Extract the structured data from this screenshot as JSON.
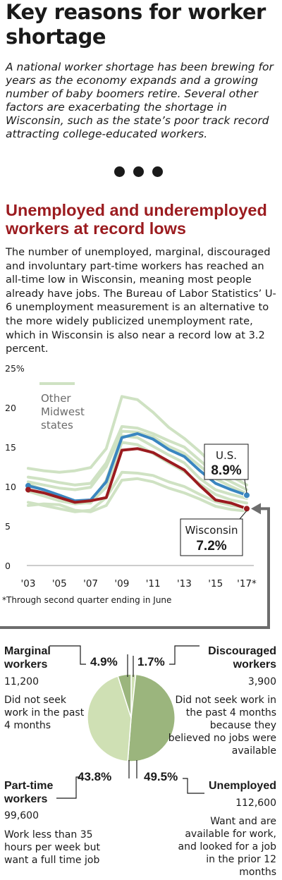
{
  "header": {
    "title": "Key reasons for worker shortage",
    "intro": "A national worker shortage has been brewing for years as the economy expands and a growing number of baby boomers retire. Several other factors are exacerbating the shortage in Wisconsin, such as the state’s poor track record attracting college-educated workers."
  },
  "section": {
    "title": "Unemployed and underemployed workers at record lows",
    "description": "The number of unemployed, marginal, discouraged and involuntary part-time workers has reached an all-time low in Wisconsin, meaning most people already have jobs. The Bureau of Labor Statistics’ U-6 unemployment measurement is an alternative to the more widely publicized unemployment rate, which in Wisconsin is also near a record low at 3.2 percent."
  },
  "footnote": "*Through second quarter ending in June",
  "colors": {
    "us": "#3a86c0",
    "wisconsin": "#9b1b1f",
    "midwest": "#cfe2c3",
    "accent": "#9b1b1f",
    "pie_dark": "#9bb57d",
    "pie_light": "#cfe0b4"
  },
  "chart_data": [
    {
      "type": "line",
      "title": "",
      "ylim": [
        0,
        25
      ],
      "yticks": [
        "0",
        "5",
        "10",
        "15",
        "20",
        "25%"
      ],
      "xticks": [
        "'03",
        "'05",
        "'07",
        "'09",
        "'11",
        "'13",
        "'15",
        "'17*"
      ],
      "x": [
        2003,
        2004,
        2005,
        2006,
        2007,
        2008,
        2009,
        2010,
        2011,
        2012,
        2013,
        2014,
        2015,
        2016,
        2017
      ],
      "legend": {
        "label_lines": [
          "Other",
          "Midwest",
          "states"
        ]
      },
      "series": [
        {
          "name": "U.S.",
          "end_value": "8.9%",
          "values": [
            10.1,
            9.6,
            8.9,
            8.2,
            8.3,
            10.6,
            16.2,
            16.7,
            16.0,
            14.7,
            13.8,
            12.0,
            10.4,
            9.6,
            8.9
          ]
        },
        {
          "name": "Wisconsin",
          "end_value": "7.2%",
          "values": [
            9.6,
            9.2,
            8.6,
            8.0,
            8.2,
            8.6,
            14.6,
            14.8,
            14.3,
            13.2,
            12.1,
            10.1,
            8.3,
            7.9,
            7.2
          ]
        },
        {
          "name": "",
          "values": [
            12.3,
            12.0,
            11.8,
            12.0,
            12.4,
            14.8,
            21.4,
            21.0,
            19.4,
            17.5,
            16.1,
            14.4,
            12.5,
            11.3,
            10.2
          ]
        },
        {
          "name": "",
          "values": [
            11.2,
            10.9,
            10.5,
            10.2,
            10.4,
            13.0,
            17.6,
            17.4,
            16.7,
            15.8,
            15.0,
            13.3,
            11.6,
            10.6,
            9.6
          ]
        },
        {
          "name": "",
          "values": [
            10.6,
            10.2,
            9.8,
            9.6,
            9.9,
            12.5,
            17.0,
            16.9,
            16.3,
            15.1,
            14.2,
            12.6,
            11.0,
            10.0,
            9.1
          ]
        },
        {
          "name": "",
          "values": [
            10.3,
            9.6,
            8.7,
            8.0,
            7.9,
            10.8,
            16.4,
            16.2,
            15.1,
            14.0,
            13.0,
            11.0,
            9.6,
            9.0,
            8.5
          ]
        },
        {
          "name": "",
          "values": [
            9.4,
            8.8,
            8.2,
            7.8,
            8.0,
            9.9,
            15.6,
            15.3,
            14.2,
            13.0,
            11.9,
            10.3,
            9.0,
            8.3,
            7.9
          ]
        },
        {
          "name": "",
          "values": [
            8.0,
            7.6,
            7.2,
            6.8,
            7.0,
            8.6,
            11.8,
            11.7,
            11.4,
            10.6,
            10.0,
            9.0,
            8.1,
            7.6,
            7.3
          ]
        },
        {
          "name": "",
          "values": [
            7.6,
            7.8,
            7.7,
            7.0,
            6.8,
            7.6,
            10.8,
            11.0,
            10.6,
            9.8,
            9.2,
            8.4,
            7.5,
            7.1,
            6.9
          ]
        }
      ]
    },
    {
      "type": "pie",
      "title": "",
      "slices": [
        {
          "name": "Unemployed",
          "pct_label": "49.5%",
          "value": 49.5,
          "count": "112,600",
          "description": "Want and are available for work, and looked for a job in the prior 12 months",
          "color": "#9bb57d"
        },
        {
          "name": "Part-time workers",
          "pct_label": "43.8%",
          "value": 43.8,
          "count": "99,600",
          "description": "Work less than 35 hours per week but want a full time job",
          "color": "#cfe0b4"
        },
        {
          "name": "Marginal workers",
          "pct_label": "4.9%",
          "value": 4.9,
          "count": "11,200",
          "description": "Did not seek work in the past 4 months",
          "color": "#9bb57d"
        },
        {
          "name": "Discouraged workers",
          "pct_label": "1.7%",
          "value": 1.7,
          "count": "3,900",
          "description": "Did not seek work in the past 4 months because they believed no jobs were available",
          "color": "#cfe0b4"
        }
      ]
    }
  ]
}
